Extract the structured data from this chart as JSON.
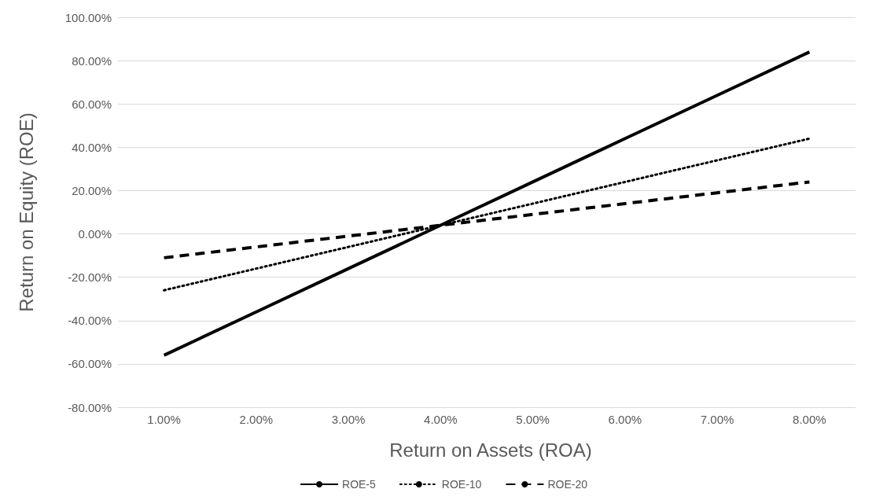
{
  "chart_data": {
    "type": "line",
    "xlabel": "Return on Assets (ROA)",
    "ylabel": "Return on Equity (ROE)",
    "categories": [
      "1.00%",
      "2.00%",
      "3.00%",
      "4.00%",
      "5.00%",
      "6.00%",
      "7.00%",
      "8.00%"
    ],
    "series": [
      {
        "name": "ROE-5",
        "color": "#000000",
        "line_style": "solid",
        "values": [
          -56,
          -36,
          -16,
          4,
          24,
          44,
          64,
          84
        ]
      },
      {
        "name": "ROE-10",
        "color": "#000000",
        "line_style": "dotted",
        "values": [
          -26,
          -16,
          -6,
          4,
          14,
          24,
          34,
          44
        ]
      },
      {
        "name": "ROE-20",
        "color": "#000000",
        "line_style": "dashed",
        "values": [
          -11,
          -6,
          -1,
          4,
          9,
          14,
          19,
          24
        ]
      }
    ],
    "ylim": [
      -80,
      100
    ],
    "yticks": [
      {
        "value": -80,
        "label": "-80.00%"
      },
      {
        "value": -60,
        "label": "-60.00%"
      },
      {
        "value": -40,
        "label": "-40.00%"
      },
      {
        "value": -20,
        "label": "-20.00%"
      },
      {
        "value": 0,
        "label": "0.00%"
      },
      {
        "value": 20,
        "label": "20.00%"
      },
      {
        "value": 40,
        "label": "40.00%"
      },
      {
        "value": 60,
        "label": "60.00%"
      },
      {
        "value": 80,
        "label": "80.00%"
      },
      {
        "value": 100,
        "label": "100.00%"
      }
    ],
    "grid": "y",
    "legend": "bottom",
    "marker": "none"
  }
}
